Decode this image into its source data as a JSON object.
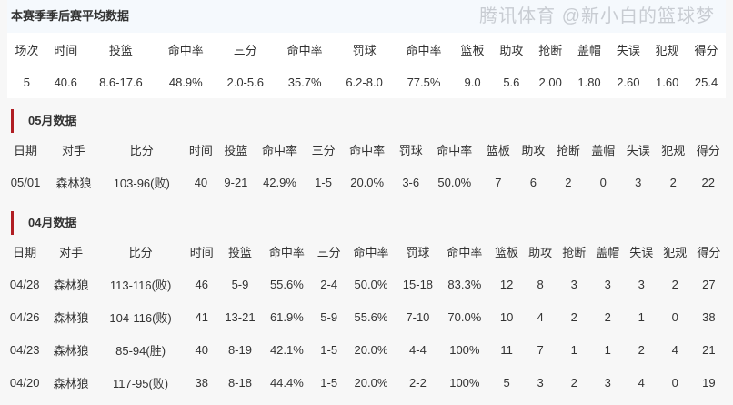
{
  "season": {
    "title": "本赛季季后赛平均数据",
    "headers": [
      "场次",
      "时间",
      "投篮",
      "命中率",
      "三分",
      "命中率",
      "罚球",
      "命中率",
      "篮板",
      "助攻",
      "抢断",
      "盖帽",
      "失误",
      "犯规",
      "得分"
    ],
    "values": [
      "5",
      "40.6",
      "8.6-17.6",
      "48.9%",
      "2.0-5.6",
      "35.7%",
      "6.2-8.0",
      "77.5%",
      "9.0",
      "5.6",
      "2.00",
      "1.80",
      "2.60",
      "1.60",
      "25.4"
    ]
  },
  "months": [
    {
      "title": "05月数据",
      "headers": [
        "日期",
        "对手",
        "比分",
        "时间",
        "投篮",
        "命中率",
        "三分",
        "命中率",
        "罚球",
        "命中率",
        "篮板",
        "助攻",
        "抢断",
        "盖帽",
        "失误",
        "犯规",
        "得分"
      ],
      "rows": [
        [
          "05/01",
          "森林狼",
          "103-96(败)",
          "40",
          "9-21",
          "42.9%",
          "1-5",
          "20.0%",
          "3-6",
          "50.0%",
          "7",
          "6",
          "2",
          "0",
          "3",
          "2",
          "22"
        ]
      ]
    },
    {
      "title": "04月数据",
      "headers": [
        "日期",
        "对手",
        "比分",
        "时间",
        "投篮",
        "命中率",
        "三分",
        "命中率",
        "罚球",
        "命中率",
        "篮板",
        "助攻",
        "抢断",
        "盖帽",
        "失误",
        "犯规",
        "得分"
      ],
      "rows": [
        [
          "04/28",
          "森林狼",
          "113-116(败)",
          "46",
          "5-9",
          "55.6%",
          "2-4",
          "50.0%",
          "15-18",
          "83.3%",
          "12",
          "8",
          "3",
          "3",
          "3",
          "2",
          "27"
        ],
        [
          "04/26",
          "森林狼",
          "104-116(败)",
          "41",
          "13-21",
          "61.9%",
          "5-9",
          "55.6%",
          "7-10",
          "70.0%",
          "10",
          "4",
          "2",
          "2",
          "1",
          "0",
          "38"
        ],
        [
          "04/23",
          "森林狼",
          "85-94(胜)",
          "40",
          "8-19",
          "42.1%",
          "1-5",
          "20.0%",
          "4-4",
          "100%",
          "11",
          "7",
          "1",
          "1",
          "2",
          "4",
          "21"
        ],
        [
          "04/20",
          "森林狼",
          "117-95(败)",
          "38",
          "8-18",
          "44.4%",
          "1-5",
          "20.0%",
          "2-2",
          "100%",
          "5",
          "3",
          "2",
          "3",
          "4",
          "0",
          "19"
        ]
      ]
    }
  ],
  "watermark": "腾讯体育 @新小白的篮球梦"
}
